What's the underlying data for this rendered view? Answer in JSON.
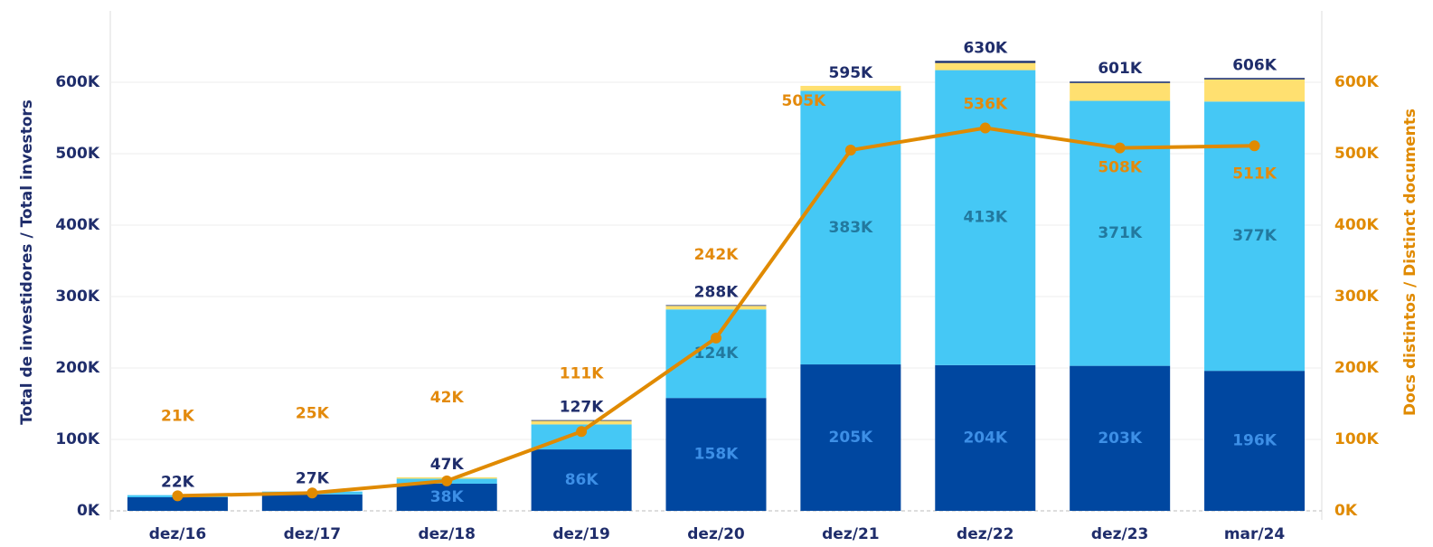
{
  "chart_data": {
    "type": "stacked_bar_line",
    "y_label": "Total de investidores / Total investors",
    "y2_label": "Docs distintos / Distinct documents",
    "categories": [
      "dez/16",
      "dez/17",
      "dez/18",
      "dez/19",
      "dez/20",
      "dez/21",
      "dez/22",
      "dez/23",
      "mar/24"
    ],
    "ylim": [
      0,
      700
    ],
    "yticks": [
      {
        "value": 0,
        "label": "0K"
      },
      {
        "value": 100,
        "label": "100K"
      },
      {
        "value": 200,
        "label": "200K"
      },
      {
        "value": 300,
        "label": "300K"
      },
      {
        "value": 400,
        "label": "400K"
      },
      {
        "value": 500,
        "label": "500K"
      },
      {
        "value": 600,
        "label": "600K"
      }
    ],
    "y2lim": [
      0,
      700
    ],
    "y2ticks": [
      {
        "value": 0,
        "label": "0K"
      },
      {
        "value": 100,
        "label": "100K"
      },
      {
        "value": 200,
        "label": "200K"
      },
      {
        "value": 300,
        "label": "300K"
      },
      {
        "value": 400,
        "label": "400K"
      },
      {
        "value": 500,
        "label": "500K"
      },
      {
        "value": 600,
        "label": "600K"
      }
    ],
    "grid": true,
    "series": [
      {
        "color": "#0047a0",
        "label_color": "#3d8fe6",
        "values": [
          19,
          23,
          38,
          86,
          158,
          205,
          204,
          203,
          196
        ],
        "value_labels": [
          null,
          null,
          "38K",
          "86K",
          "158K",
          "205K",
          "204K",
          "203K",
          "196K"
        ]
      },
      {
        "color": "#45c8f5",
        "label_color": "#22799f",
        "values": [
          3,
          4,
          7,
          35,
          124,
          383,
          413,
          371,
          377
        ],
        "value_labels": [
          null,
          null,
          null,
          null,
          "124K",
          "383K",
          "413K",
          "371K",
          "377K"
        ]
      },
      {
        "color": "#ffe070",
        "values": [
          0,
          0,
          2,
          5,
          5,
          7,
          10,
          25,
          31
        ]
      },
      {
        "color": "#1a2f6e",
        "values": [
          0,
          0,
          0,
          1,
          1,
          0,
          3,
          2,
          2
        ]
      }
    ],
    "totals": {
      "color": "#1f2d6b",
      "values": [
        22,
        27,
        47,
        127,
        288,
        595,
        630,
        601,
        606
      ],
      "value_labels": [
        "22K",
        "27K",
        "47K",
        "127K",
        "288K",
        "595K",
        "630K",
        "601K",
        "606K"
      ]
    },
    "line": {
      "color": "#e08a00",
      "axis": "y2",
      "values": [
        21,
        25,
        42,
        111,
        242,
        505,
        536,
        508,
        511
      ],
      "value_labels": [
        "21K",
        "25K",
        "42K",
        "111K",
        "242K",
        "505K",
        "536K",
        "508K",
        "511K"
      ]
    }
  }
}
